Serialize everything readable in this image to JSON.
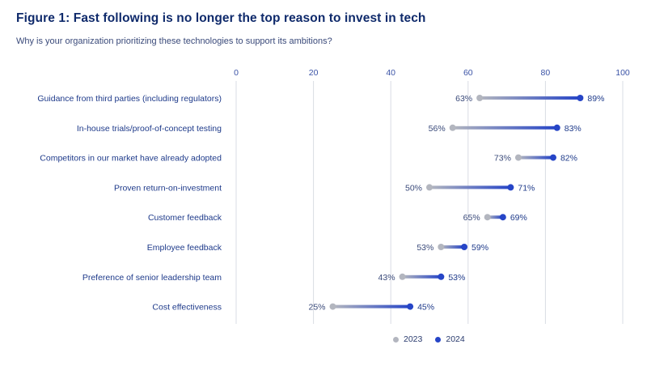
{
  "title": "Figure 1: Fast following is no longer the top reason to invest in tech",
  "subtitle": "Why is your organization prioritizing these technologies to support its ambitions?",
  "colors": {
    "series_2023": "#b3b6bf",
    "series_2024": "#2645c7",
    "grid": "#d9dce4"
  },
  "chart_data": {
    "type": "dumbbell",
    "categories": [
      "Guidance from third parties (including regulators)",
      "In-house trials/proof-of-concept testing",
      "Competitors in our market have already adopted",
      "Proven return-on-investment",
      "Customer feedback",
      "Employee feedback",
      "Preference of senior leadership team",
      "Cost effectiveness"
    ],
    "series": [
      {
        "name": "2023",
        "values": [
          63,
          56,
          73,
          50,
          65,
          53,
          43,
          25
        ],
        "labels": [
          "63%",
          "56%",
          "73%",
          "50%",
          "65%",
          "53%",
          "43%",
          "25%"
        ]
      },
      {
        "name": "2024",
        "values": [
          89,
          83,
          82,
          71,
          69,
          59,
          53,
          45
        ],
        "labels": [
          "89%",
          "83%",
          "82%",
          "71%",
          "69%",
          "59%",
          "53%",
          "45%"
        ]
      }
    ],
    "xlim": [
      0,
      100
    ],
    "xticks": [
      "0",
      "20",
      "40",
      "60",
      "80",
      "100"
    ],
    "grid": true,
    "legend_position": "bottom-center"
  }
}
